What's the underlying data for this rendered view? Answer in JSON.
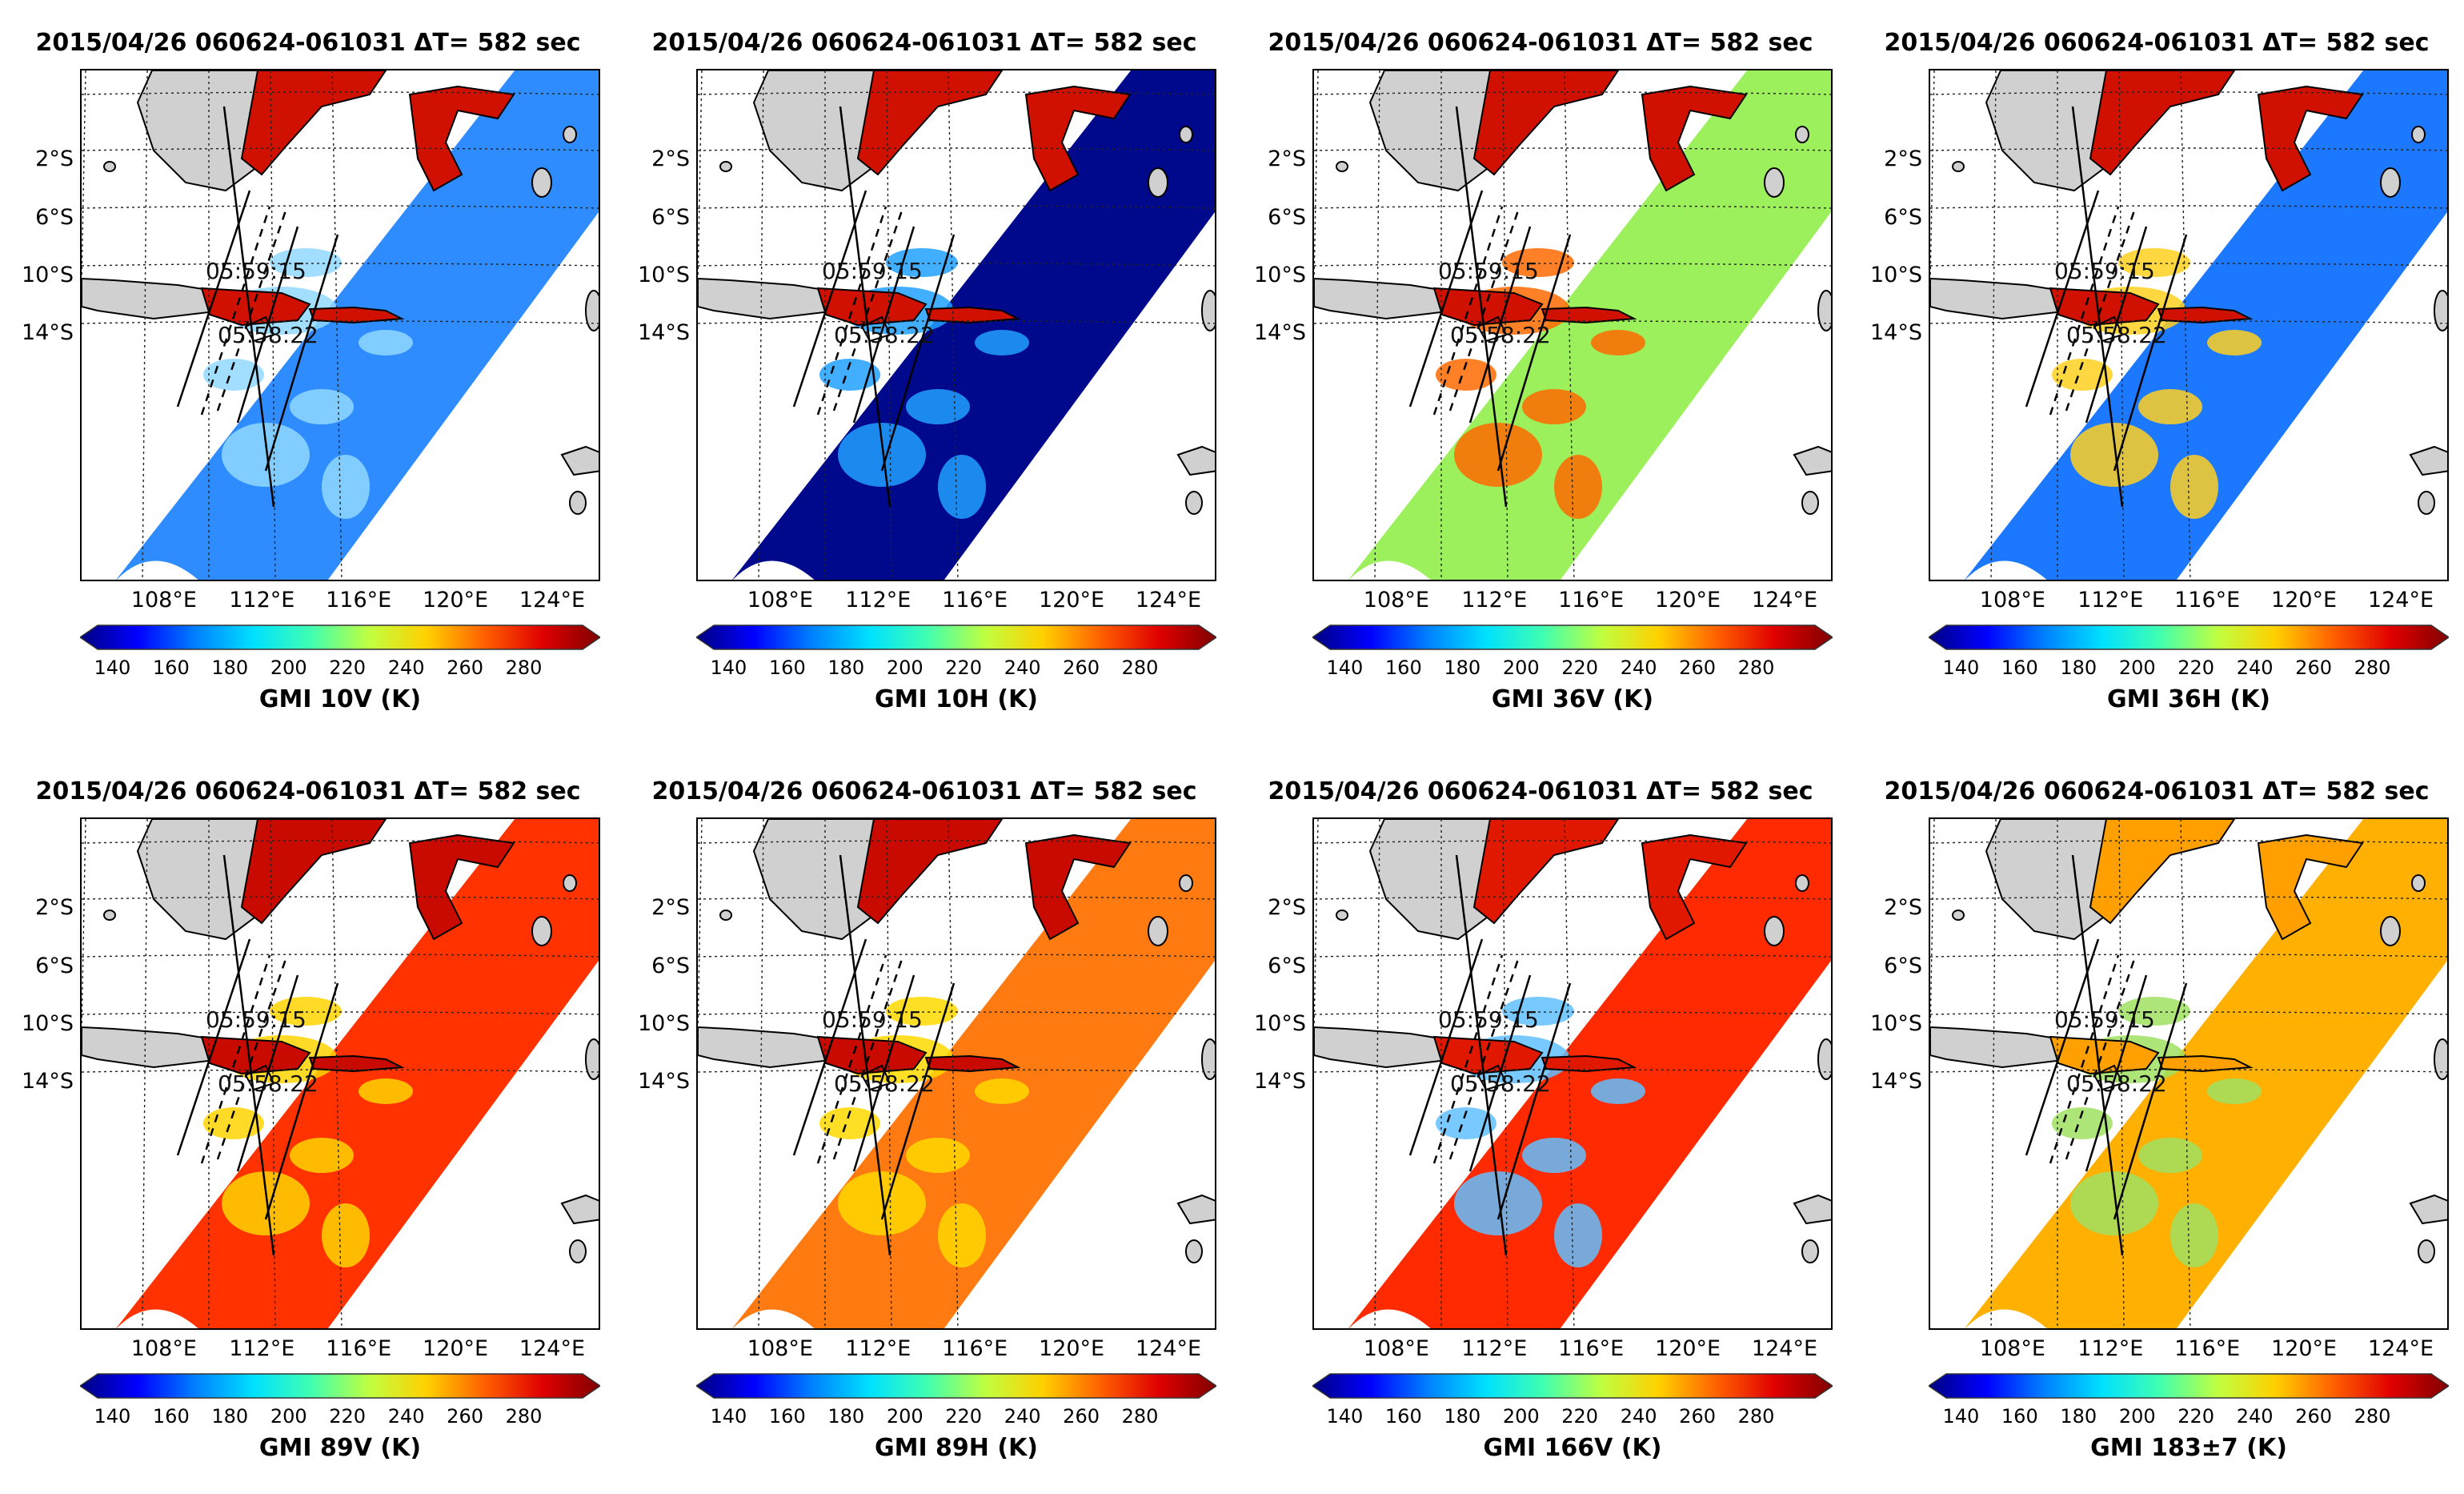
{
  "panels": [
    {
      "id": "10v",
      "title": "2015/04/26 060624-061031  ΔT= 582 sec",
      "colorbar_label": "GMI 10V (K)",
      "ocean_color": "#2f8cff",
      "land_color": "#d01000",
      "storm_color": "#90d8ff"
    },
    {
      "id": "10h",
      "title": "2015/04/26 060624-061031  ΔT= 582 sec",
      "colorbar_label": "GMI 10H (K)",
      "ocean_color": "#00088c",
      "land_color": "#d01000",
      "storm_color": "#20a0ff"
    },
    {
      "id": "36v",
      "title": "2015/04/26 060624-061031  ΔT= 582 sec",
      "colorbar_label": "GMI 36V (K)",
      "ocean_color": "#9cf05c",
      "land_color": "#d01000",
      "storm_color": "#ff6a00"
    },
    {
      "id": "36h",
      "title": "2015/04/26 060624-061031  ΔT= 582 sec",
      "colorbar_label": "GMI 36H (K)",
      "ocean_color": "#1c78ff",
      "land_color": "#d01000",
      "storm_color": "#ffd020"
    },
    {
      "id": "89v",
      "title": "2015/04/26 060624-061031  ΔT= 582 sec",
      "colorbar_label": "GMI 89V (K)",
      "ocean_color": "#ff3200",
      "land_color": "#c80a00",
      "storm_color": "#ffd400"
    },
    {
      "id": "89h",
      "title": "2015/04/26 060624-061031  ΔT= 582 sec",
      "colorbar_label": "GMI 89H (K)",
      "ocean_color": "#ff7a10",
      "land_color": "#c80a00",
      "storm_color": "#ffd800"
    },
    {
      "id": "166v",
      "title": "2015/04/26 060624-061031  ΔT= 582 sec",
      "colorbar_label": "GMI 166V (K)",
      "ocean_color": "#ff2a00",
      "land_color": "#e01800",
      "storm_color": "#60c0ff"
    },
    {
      "id": "183",
      "title": "2015/04/26 060624-061031  ΔT= 582 sec",
      "colorbar_label": "GMI 183±7 (K)",
      "ocean_color": "#ffb000",
      "land_color": "#ffa000",
      "storm_color": "#a0e060"
    }
  ],
  "map": {
    "lat_labels": [
      "2°S",
      "6°S",
      "10°S",
      "14°S"
    ],
    "lon_labels": [
      "108°E",
      "112°E",
      "116°E",
      "120°E",
      "124°E"
    ],
    "annotations": [
      "05:59:15",
      "05:58:22"
    ]
  },
  "colorbar": {
    "ticks": [
      "140",
      "160",
      "180",
      "200",
      "220",
      "240",
      "260",
      "280"
    ],
    "range_k": [
      135,
      300
    ],
    "colors": [
      "#000080",
      "#0000ff",
      "#0080ff",
      "#00e0ff",
      "#40ffb0",
      "#c0ff40",
      "#ffd000",
      "#ff6000",
      "#e00000",
      "#800000"
    ]
  }
}
